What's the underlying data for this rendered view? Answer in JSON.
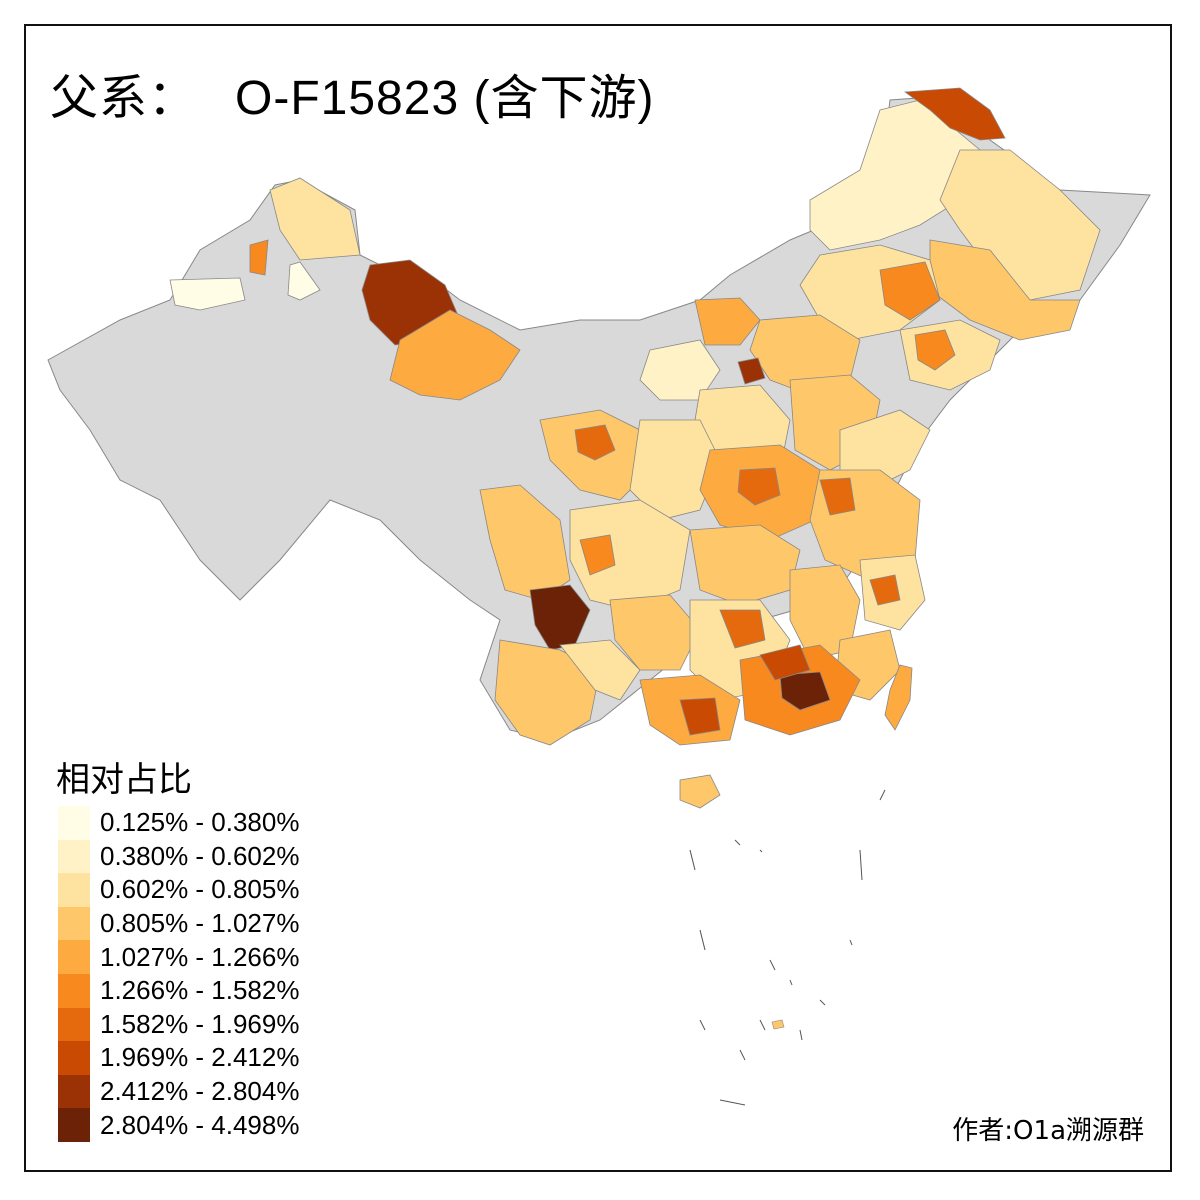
{
  "title": {
    "prefix": "父系：",
    "haplogroup": "O-F15823 (含下游)"
  },
  "legend": {
    "title": "相对占比",
    "items": [
      {
        "label": "0.125% - 0.380%",
        "color": "#fffde6"
      },
      {
        "label": "0.380% - 0.602%",
        "color": "#fff2c6"
      },
      {
        "label": "0.602% - 0.805%",
        "color": "#fee2a0"
      },
      {
        "label": "0.805% - 1.027%",
        "color": "#fec86a"
      },
      {
        "label": "1.027% - 1.266%",
        "color": "#fdaa41"
      },
      {
        "label": "1.266% - 1.582%",
        "color": "#f7891f"
      },
      {
        "label": "1.582% - 1.969%",
        "color": "#e56a0d"
      },
      {
        "label": "1.969% - 2.412%",
        "color": "#c94a03"
      },
      {
        "label": "2.412% - 2.804%",
        "color": "#9a3205"
      },
      {
        "label": "2.804% - 4.498%",
        "color": "#6b2206"
      }
    ],
    "no_data_color": "#d9d9d9"
  },
  "author": "作者:O1a溯源群"
}
